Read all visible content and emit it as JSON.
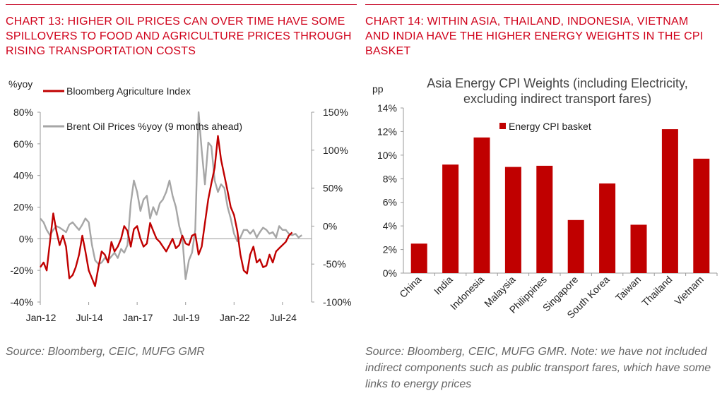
{
  "colors": {
    "accent": "#c00000",
    "brent": "#a6a6a6",
    "title_red": "#d0021b",
    "source_grey": "#666666"
  },
  "left_panel": {
    "title": "CHART 13: HIGHER OIL PRICES CAN OVER TIME HAVE SOME SPILLOVERS TO FOOD AND AGRICULTURE PRICES THROUGH RISING TRANSPORTATION COSTS",
    "source": "Source: Bloomberg, CEIC, MUFG GMR"
  },
  "right_panel": {
    "title": "CHART 14: WITHIN ASIA, THAILAND, INDONESIA, VIETNAM AND INDIA HAVE THE HIGHER ENERGY WEIGHTS IN THE CPI BASKET",
    "source": "Source: Bloomberg, CEIC, MUFG GMR. Note: we have not included indirect components such as public transport fares, which have some links to energy prices"
  },
  "chart_data": [
    {
      "type": "line",
      "title": "",
      "left_unit": "%yoy",
      "ylim_left": [
        -40,
        80
      ],
      "ylim_right": [
        -100,
        150
      ],
      "left_ticks": [
        "80%",
        "60%",
        "40%",
        "20%",
        "0%",
        "-20%",
        "-40%"
      ],
      "right_ticks": [
        "150%",
        "100%",
        "50%",
        "0%",
        "-50%",
        "-100%"
      ],
      "x_tick_labels": [
        "Jan-12",
        "Jul-14",
        "Jan-17",
        "Jul-19",
        "Jan-22",
        "Jul-24"
      ],
      "x_tick_values": [
        2012.0,
        2014.5,
        2017.0,
        2019.5,
        2022.0,
        2024.5
      ],
      "xlim": [
        2012.0,
        2026.0
      ],
      "legend_position": "top-left",
      "series": [
        {
          "name": "Bloomberg Agriculture Index",
          "axis": "left",
          "color": "#c00000",
          "x": [
            2012.0,
            2012.17,
            2012.33,
            2012.5,
            2012.67,
            2012.83,
            2013.0,
            2013.17,
            2013.33,
            2013.5,
            2013.67,
            2013.83,
            2014.0,
            2014.17,
            2014.33,
            2014.5,
            2014.67,
            2014.83,
            2015.0,
            2015.17,
            2015.33,
            2015.5,
            2015.67,
            2015.83,
            2016.0,
            2016.17,
            2016.33,
            2016.5,
            2016.67,
            2016.83,
            2017.0,
            2017.17,
            2017.33,
            2017.5,
            2017.67,
            2017.83,
            2018.0,
            2018.17,
            2018.33,
            2018.5,
            2018.67,
            2018.83,
            2019.0,
            2019.17,
            2019.33,
            2019.5,
            2019.67,
            2019.83,
            2020.0,
            2020.17,
            2020.33,
            2020.5,
            2020.67,
            2020.83,
            2021.0,
            2021.17,
            2021.33,
            2021.5,
            2021.67,
            2021.83,
            2022.0,
            2022.17,
            2022.33,
            2022.5,
            2022.67,
            2022.83,
            2023.0,
            2023.17,
            2023.33,
            2023.5,
            2023.67,
            2023.83,
            2024.0,
            2024.17,
            2024.33,
            2024.5,
            2024.67,
            2024.83,
            2025.0
          ],
          "y": [
            -18,
            -15,
            -20,
            -2,
            16,
            5,
            -4,
            2,
            -5,
            -25,
            -23,
            -18,
            -10,
            2,
            -8,
            -20,
            -25,
            -30,
            -18,
            -8,
            -10,
            -15,
            -2,
            -8,
            -5,
            0,
            8,
            5,
            -5,
            6,
            8,
            0,
            -5,
            -3,
            10,
            5,
            0,
            -2,
            -5,
            -8,
            -4,
            0,
            -6,
            -4,
            2,
            -3,
            -4,
            2,
            3,
            -10,
            -5,
            10,
            25,
            35,
            45,
            65,
            50,
            40,
            30,
            20,
            15,
            5,
            -10,
            -20,
            -22,
            -10,
            -5,
            -15,
            -13,
            -18,
            -17,
            -10,
            -15,
            -8,
            -6,
            -4,
            -2,
            2,
            4
          ]
        },
        {
          "name": "Brent Oil Prices %yoy (9 months ahead)",
          "axis": "right",
          "color": "#a6a6a6",
          "x": [
            2012.0,
            2012.17,
            2012.33,
            2012.5,
            2012.67,
            2012.83,
            2013.0,
            2013.17,
            2013.33,
            2013.5,
            2013.67,
            2013.83,
            2014.0,
            2014.17,
            2014.33,
            2014.5,
            2014.67,
            2014.83,
            2015.0,
            2015.17,
            2015.33,
            2015.5,
            2015.67,
            2015.83,
            2016.0,
            2016.17,
            2016.33,
            2016.5,
            2016.67,
            2016.83,
            2017.0,
            2017.17,
            2017.33,
            2017.5,
            2017.67,
            2017.83,
            2018.0,
            2018.17,
            2018.33,
            2018.5,
            2018.67,
            2018.83,
            2019.0,
            2019.17,
            2019.33,
            2019.5,
            2019.67,
            2019.83,
            2020.0,
            2020.17,
            2020.33,
            2020.5,
            2020.67,
            2020.83,
            2021.0,
            2021.17,
            2021.33,
            2021.5,
            2021.67,
            2021.83,
            2022.0,
            2022.17,
            2022.33,
            2022.5,
            2022.67,
            2022.83,
            2023.0,
            2023.17,
            2023.33,
            2023.5,
            2023.67,
            2023.83,
            2024.0,
            2024.17,
            2024.33,
            2024.5,
            2024.67,
            2024.83,
            2025.0,
            2025.17,
            2025.33,
            2025.5
          ],
          "y": [
            10,
            5,
            -5,
            -12,
            -5,
            0,
            -2,
            -5,
            -8,
            2,
            5,
            0,
            -5,
            2,
            10,
            5,
            -25,
            -45,
            -50,
            -48,
            -42,
            -45,
            -40,
            -35,
            -42,
            -30,
            -35,
            -25,
            30,
            60,
            45,
            20,
            35,
            40,
            10,
            25,
            15,
            30,
            35,
            45,
            60,
            40,
            25,
            0,
            -15,
            -70,
            -45,
            -35,
            -5,
            150,
            100,
            55,
            110,
            105,
            60,
            45,
            55,
            50,
            25,
            10,
            -10,
            -20,
            -15,
            -5,
            -5,
            -10,
            -5,
            -15,
            -8,
            -2,
            -5,
            -10,
            -8,
            -15,
            0,
            -5,
            -5,
            -10,
            -12,
            -10,
            -15,
            -12
          ]
        }
      ]
    },
    {
      "type": "bar",
      "title": "Asia Energy CPI Weights (including Electricity, excluding indirect transport fares)",
      "title_lines": [
        "Asia Energy CPI Weights (including Electricity,",
        "excluding indirect transport fares)"
      ],
      "ylabel": "pp",
      "ylim": [
        0,
        14
      ],
      "y_ticks": [
        "0%",
        "2%",
        "4%",
        "6%",
        "8%",
        "10%",
        "12%",
        "14%"
      ],
      "legend_position": "top-center",
      "categories": [
        "China",
        "India",
        "Indonesia",
        "Malaysia",
        "Philippines",
        "Singapore",
        "South Korea",
        "Taiwan",
        "Thailand",
        "Vietnam"
      ],
      "series": [
        {
          "name": "Energy CPI basket",
          "color": "#c00000",
          "values": [
            2.5,
            9.2,
            11.5,
            9.0,
            9.1,
            4.5,
            7.6,
            4.1,
            12.2,
            9.7
          ]
        }
      ]
    }
  ]
}
